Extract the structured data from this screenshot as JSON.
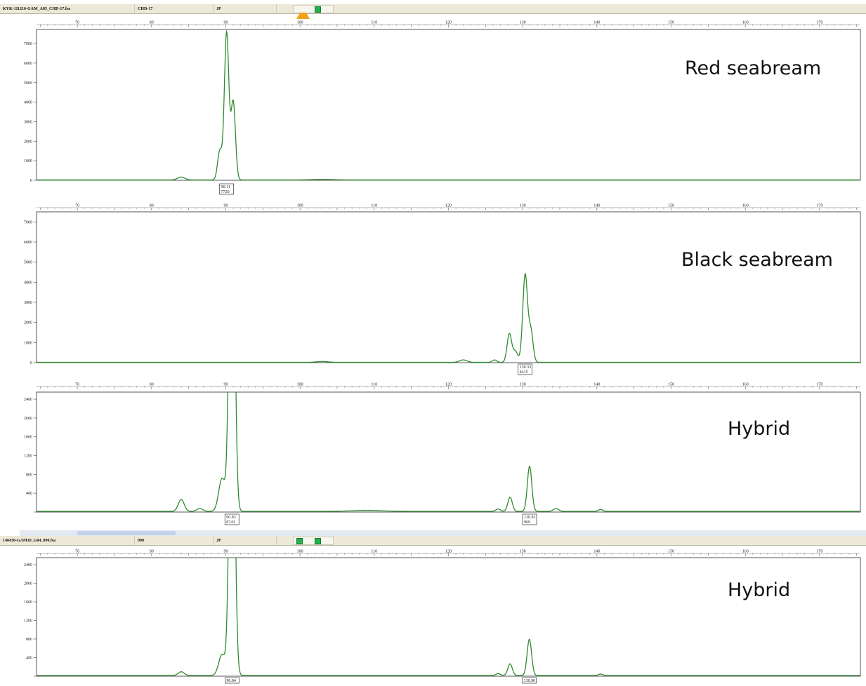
{
  "header1": {
    "filename": "KYK-111216-GAM_A05_CHD-17.fsa",
    "sample": "CHD-17",
    "dye": "JP",
    "icons": [
      "warning-icon",
      "green-status-icon"
    ]
  },
  "header2": {
    "filename": "140430-GAM10_G04_090.fsa",
    "sample": "090",
    "dye": "JP",
    "icons": [
      "green-status-icon",
      "green-status-icon"
    ]
  },
  "colors": {
    "trace": "#2e8b2e",
    "frame": "#555555",
    "header_bg": "#ece9d8"
  },
  "chart_data": [
    {
      "type": "line",
      "title": "Red seabream",
      "x_ticks": [
        70,
        80,
        90,
        100,
        110,
        120,
        130,
        140,
        150,
        160,
        170
      ],
      "y_ticks": [
        0,
        1000,
        2000,
        3000,
        4000,
        5000,
        6000,
        7000
      ],
      "xlim": [
        64.5,
        175.5
      ],
      "ylim": [
        0,
        7720
      ],
      "peaks": [
        {
          "x": 84,
          "y": 150,
          "w": 0.5
        },
        {
          "x": 89.2,
          "y": 1500,
          "w": 0.3
        },
        {
          "x": 90.11,
          "y": 7550,
          "w": 0.3
        },
        {
          "x": 91.0,
          "y": 4000,
          "w": 0.3
        },
        {
          "x": 103,
          "y": 30,
          "w": 1.5
        }
      ],
      "annotations": [
        {
          "x": 90.11,
          "line1": "90.11",
          "line2": "7720"
        }
      ]
    },
    {
      "type": "line",
      "title": "Black seabream",
      "x_ticks": [
        70,
        80,
        90,
        100,
        110,
        120,
        130,
        140,
        150,
        160,
        170
      ],
      "y_ticks": [
        0,
        1000,
        2000,
        3000,
        4000,
        5000,
        6000,
        7000
      ],
      "xlim": [
        64.5,
        175.5
      ],
      "ylim": [
        0,
        7500
      ],
      "peaks": [
        {
          "x": 103,
          "y": 40,
          "w": 0.8
        },
        {
          "x": 122,
          "y": 120,
          "w": 0.5
        },
        {
          "x": 126.2,
          "y": 120,
          "w": 0.3
        },
        {
          "x": 128.2,
          "y": 1400,
          "w": 0.3
        },
        {
          "x": 129.0,
          "y": 550,
          "w": 0.35
        },
        {
          "x": 130.33,
          "y": 4350,
          "w": 0.32
        },
        {
          "x": 131.1,
          "y": 1550,
          "w": 0.3
        }
      ],
      "annotations": [
        {
          "x": 130.33,
          "line1": "130.33",
          "line2": "4415"
        }
      ]
    },
    {
      "type": "line",
      "title": "Hybrid",
      "x_ticks": [
        70,
        80,
        90,
        100,
        110,
        120,
        130,
        140,
        150,
        160,
        170
      ],
      "y_ticks": [
        400,
        800,
        1200,
        1600,
        2000,
        2400
      ],
      "xlim": [
        64.5,
        175.5
      ],
      "ylim": [
        0,
        2550
      ],
      "peaks": [
        {
          "x": 84,
          "y": 250,
          "w": 0.4
        },
        {
          "x": 86.5,
          "y": 60,
          "w": 0.4
        },
        {
          "x": 89.5,
          "y": 700,
          "w": 0.45
        },
        {
          "x": 90.83,
          "y": 8743,
          "w": 0.35
        },
        {
          "x": 109,
          "y": 20,
          "w": 2.0
        },
        {
          "x": 126.7,
          "y": 50,
          "w": 0.3
        },
        {
          "x": 128.3,
          "y": 300,
          "w": 0.3
        },
        {
          "x": 130.93,
          "y": 960,
          "w": 0.3
        },
        {
          "x": 134.5,
          "y": 60,
          "w": 0.35
        },
        {
          "x": 140.5,
          "y": 40,
          "w": 0.3
        }
      ],
      "annotations": [
        {
          "x": 90.83,
          "line1": "90.83",
          "line2": "8743"
        },
        {
          "x": 130.93,
          "line1": "130.93",
          "line2": "969"
        }
      ]
    },
    {
      "type": "line",
      "title": "Hybrid",
      "x_ticks": [
        70,
        80,
        90,
        100,
        110,
        120,
        130,
        140,
        150,
        160,
        170
      ],
      "y_ticks": [
        400,
        800,
        1200,
        1600,
        2000,
        2400
      ],
      "xlim": [
        64.5,
        175.5
      ],
      "ylim": [
        0,
        2550
      ],
      "peaks": [
        {
          "x": 84,
          "y": 80,
          "w": 0.4
        },
        {
          "x": 89.5,
          "y": 450,
          "w": 0.45
        },
        {
          "x": 90.84,
          "y": 8000,
          "w": 0.35
        },
        {
          "x": 126.7,
          "y": 40,
          "w": 0.3
        },
        {
          "x": 128.3,
          "y": 250,
          "w": 0.3
        },
        {
          "x": 130.9,
          "y": 780,
          "w": 0.3
        },
        {
          "x": 140.5,
          "y": 30,
          "w": 0.3
        }
      ],
      "annotations": [
        {
          "x": 90.84,
          "line1": "90.84",
          "line2": ""
        },
        {
          "x": 130.9,
          "line1": "130.90",
          "line2": ""
        }
      ]
    }
  ]
}
